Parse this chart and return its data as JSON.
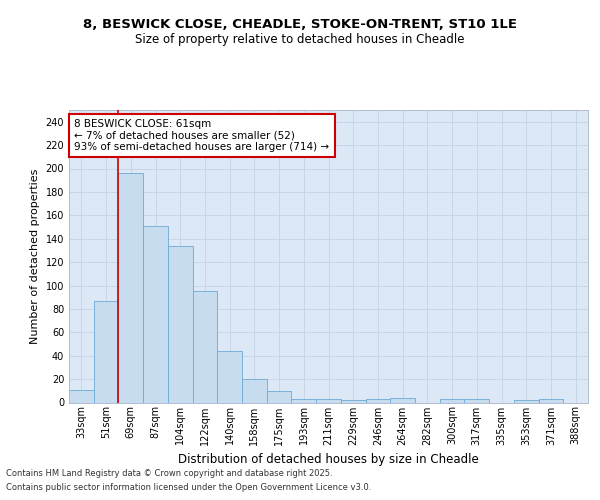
{
  "title_line1": "8, BESWICK CLOSE, CHEADLE, STOKE-ON-TRENT, ST10 1LE",
  "title_line2": "Size of property relative to detached houses in Cheadle",
  "xlabel": "Distribution of detached houses by size in Cheadle",
  "ylabel": "Number of detached properties",
  "categories": [
    "33sqm",
    "51sqm",
    "69sqm",
    "87sqm",
    "104sqm",
    "122sqm",
    "140sqm",
    "158sqm",
    "175sqm",
    "193sqm",
    "211sqm",
    "229sqm",
    "246sqm",
    "264sqm",
    "282sqm",
    "300sqm",
    "317sqm",
    "335sqm",
    "353sqm",
    "371sqm",
    "388sqm"
  ],
  "values": [
    11,
    87,
    196,
    151,
    134,
    95,
    44,
    20,
    10,
    3,
    3,
    2,
    3,
    4,
    0,
    3,
    3,
    0,
    2,
    3,
    0
  ],
  "bar_color": "#c8dcf0",
  "bar_edge_color": "#6aaad4",
  "grid_color": "#c8d4e8",
  "background_color": "#dce8f5",
  "red_line_x": 1.5,
  "annotation_text": "8 BESWICK CLOSE: 61sqm\n← 7% of detached houses are smaller (52)\n93% of semi-detached houses are larger (714) →",
  "annotation_box_color": "#ffffff",
  "annotation_box_edge": "#cc0000",
  "footer_line1": "Contains HM Land Registry data © Crown copyright and database right 2025.",
  "footer_line2": "Contains public sector information licensed under the Open Government Licence v3.0.",
  "ylim": [
    0,
    250
  ],
  "yticks": [
    0,
    20,
    40,
    60,
    80,
    100,
    120,
    140,
    160,
    180,
    200,
    220,
    240
  ],
  "title_fontsize": 9.5,
  "subtitle_fontsize": 8.5,
  "ylabel_fontsize": 8,
  "xlabel_fontsize": 8.5,
  "tick_fontsize": 7,
  "annot_fontsize": 7.5,
  "footer_fontsize": 6
}
